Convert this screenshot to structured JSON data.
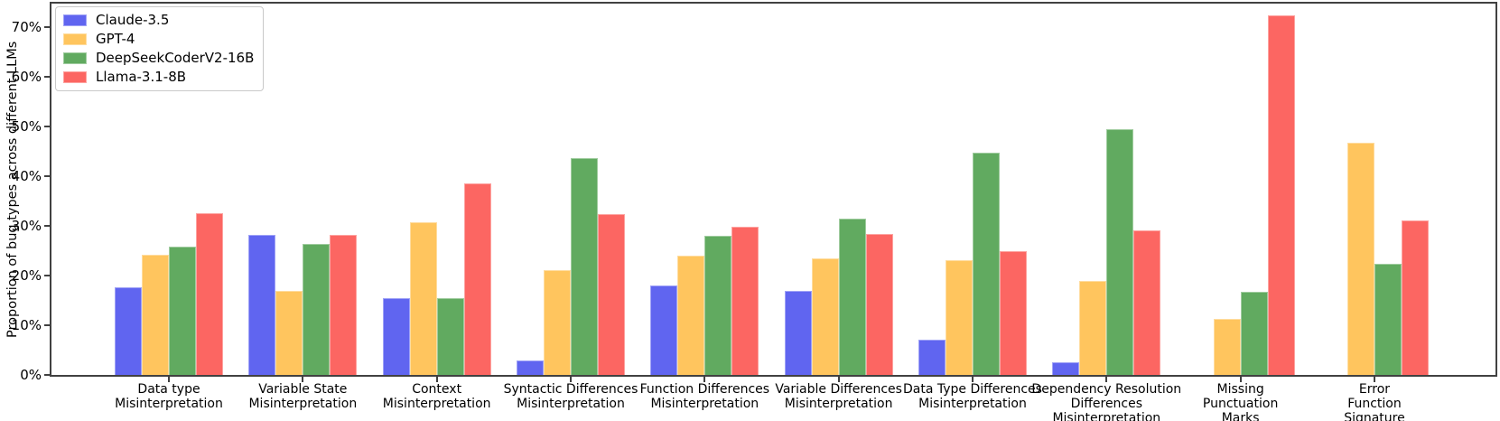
{
  "figure": {
    "ylabel": "Proportion of bug types across different LLMs"
  },
  "chart_data": {
    "type": "bar",
    "title": "",
    "xlabel": "",
    "ylabel": "Proportion of bug types across different LLMs",
    "ylim": [
      0,
      74.8
    ],
    "yticks_percent": [
      0,
      10,
      20,
      30,
      40,
      50,
      60,
      70
    ],
    "ytick_suffix": "%",
    "grid": false,
    "legend_position": "upper-left",
    "axis_color": "#414141",
    "background": "#ffffff",
    "categories": [
      "Data type Misinterpretation",
      "Variable State Misinterpretation",
      "Context Misinterpretation",
      "Syntactic Differences Misinterpretation",
      "Function Differences Misinterpretation",
      "Variable Differences Misinterpretation",
      "Data Type Differences Misinterpretation",
      "Dependency Resolution Differences Misinterpretation",
      "Missing Punctuation Marks",
      "Error Function Signature"
    ],
    "category_label_lines": [
      [
        "Data type",
        "Misinterpretation"
      ],
      [
        "Variable State",
        "Misinterpretation"
      ],
      [
        "Context",
        "Misinterpretation"
      ],
      [
        "Syntactic Differences",
        "Misinterpretation"
      ],
      [
        "Function Differences",
        "Misinterpretation"
      ],
      [
        "Variable Differences",
        "Misinterpretation"
      ],
      [
        "Data Type Differences",
        "Misinterpretation"
      ],
      [
        "Dependency Resolution",
        "Differences",
        "Misinterpretation"
      ],
      [
        "Missing",
        "Punctuation",
        "Marks"
      ],
      [
        "Error",
        "Function",
        "Signature"
      ]
    ],
    "series": [
      {
        "name": "Claude-3.5",
        "color": "#6065f0",
        "values": [
          17.7,
          28.3,
          15.4,
          2.9,
          18.0,
          17.0,
          7.1,
          2.5,
          0,
          0
        ]
      },
      {
        "name": "GPT-4",
        "color": "#ffc55e",
        "values": [
          24.2,
          17.0,
          30.8,
          21.1,
          24.1,
          23.4,
          23.2,
          19.0,
          11.2,
          46.7
        ]
      },
      {
        "name": "DeepSeekCoderV2-16B",
        "color": "#61aa60",
        "values": [
          25.8,
          26.4,
          15.4,
          43.7,
          28.1,
          31.4,
          44.7,
          49.5,
          16.7,
          22.3
        ]
      },
      {
        "name": "Llama-3.1-8B",
        "color": "#fc6662",
        "values": [
          32.5,
          28.3,
          38.5,
          32.4,
          29.8,
          28.4,
          25.0,
          29.2,
          72.4,
          31.2
        ]
      }
    ]
  }
}
